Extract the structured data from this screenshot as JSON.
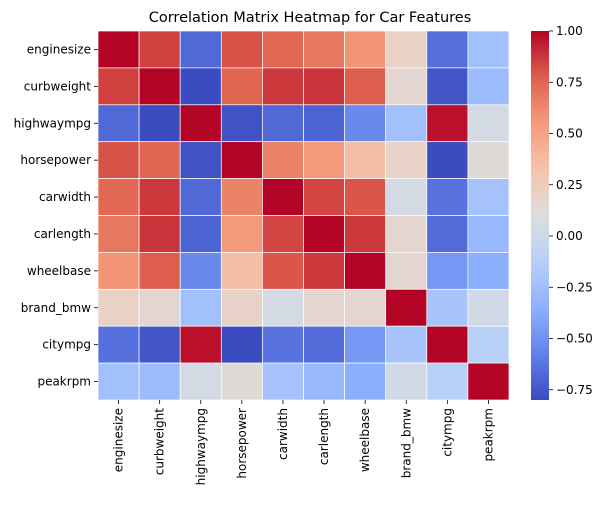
{
  "chart_data": {
    "type": "heatmap",
    "title": "Correlation Matrix Heatmap for Car Features",
    "xlabel": "",
    "ylabel": "",
    "labels": [
      "enginesize",
      "curbweight",
      "highwaympg",
      "horsepower",
      "carwidth",
      "carlength",
      "wheelbase",
      "brand_bmw",
      "citympg",
      "peakrpm"
    ],
    "matrix": [
      [
        1.0,
        0.85,
        -0.68,
        0.81,
        0.74,
        0.68,
        0.57,
        0.21,
        -0.65,
        -0.24
      ],
      [
        0.85,
        1.0,
        -0.8,
        0.75,
        0.87,
        0.88,
        0.78,
        0.16,
        -0.76,
        -0.27
      ],
      [
        -0.68,
        -0.8,
        1.0,
        -0.77,
        -0.68,
        -0.7,
        -0.54,
        -0.24,
        0.97,
        0.04
      ],
      [
        0.81,
        0.75,
        -0.77,
        1.0,
        0.64,
        0.55,
        0.35,
        0.2,
        -0.8,
        0.13
      ],
      [
        0.74,
        0.87,
        -0.68,
        0.64,
        1.0,
        0.84,
        0.8,
        0.04,
        -0.64,
        -0.22
      ],
      [
        0.68,
        0.88,
        -0.7,
        0.55,
        0.84,
        1.0,
        0.87,
        0.17,
        -0.67,
        -0.29
      ],
      [
        0.57,
        0.78,
        -0.54,
        0.35,
        0.8,
        0.87,
        1.0,
        0.16,
        -0.47,
        -0.36
      ],
      [
        0.21,
        0.16,
        -0.24,
        0.2,
        0.04,
        0.17,
        0.16,
        1.0,
        -0.21,
        0.03
      ],
      [
        -0.65,
        -0.76,
        0.97,
        -0.8,
        -0.64,
        -0.67,
        -0.47,
        -0.21,
        1.0,
        -0.11
      ],
      [
        -0.24,
        -0.27,
        0.04,
        0.13,
        -0.22,
        -0.29,
        -0.36,
        0.03,
        -0.11,
        1.0
      ]
    ],
    "vmin": -0.8,
    "vmax": 1.0,
    "colormap": "coolwarm",
    "colorbar_ticks": [
      1.0,
      0.75,
      0.5,
      0.25,
      0.0,
      -0.25,
      -0.5,
      -0.75
    ],
    "colorbar_tick_labels": [
      "1.00",
      "0.75",
      "0.50",
      "0.25",
      "0.00",
      "−0.25",
      "−0.50",
      "−0.75"
    ],
    "cell_border_color": "#ffffff"
  }
}
